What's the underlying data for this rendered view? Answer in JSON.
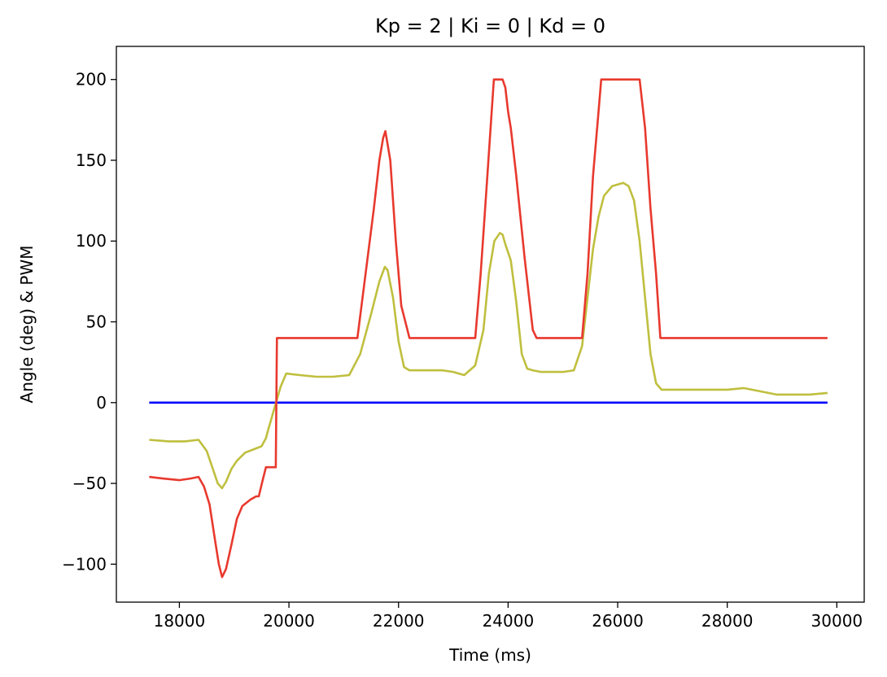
{
  "chart_data": {
    "type": "line",
    "title": "Kp = 2 | Ki = 0 | Kd = 0",
    "xlabel": "Time (ms)",
    "ylabel": "Angle (deg) & PWM",
    "xlim": [
      16850,
      30500
    ],
    "ylim": [
      -123.5,
      220.5
    ],
    "xticks": [
      18000,
      20000,
      22000,
      24000,
      26000,
      28000,
      30000
    ],
    "xtick_labels": [
      "18000",
      "20000",
      "22000",
      "24000",
      "26000",
      "28000",
      "30000"
    ],
    "yticks": [
      -100,
      -50,
      0,
      50,
      100,
      150,
      200
    ],
    "ytick_labels": [
      "−100",
      "−50",
      "0",
      "50",
      "100",
      "150",
      "200"
    ],
    "grid": false,
    "legend": "none",
    "series": [
      {
        "color": "#0000ff",
        "x": [
          17450,
          29830
        ],
        "y": [
          0,
          0
        ]
      },
      {
        "color": "#bfbf3f",
        "x": [
          17450,
          17800,
          18100,
          18350,
          18500,
          18620,
          18700,
          18780,
          18850,
          18950,
          19050,
          19200,
          19350,
          19500,
          19580,
          19620,
          19680,
          19730,
          19780,
          19850,
          19950,
          20200,
          20500,
          20800,
          21100,
          21300,
          21500,
          21650,
          21750,
          21800,
          21900,
          22000,
          22100,
          22200,
          22400,
          22600,
          22800,
          23000,
          23200,
          23400,
          23550,
          23650,
          23750,
          23850,
          23900,
          23950,
          24050,
          24150,
          24250,
          24350,
          24450,
          24600,
          24800,
          25000,
          25200,
          25350,
          25450,
          25550,
          25650,
          25750,
          25900,
          26000,
          26100,
          26200,
          26300,
          26400,
          26500,
          26600,
          26700,
          26800,
          27000,
          27500,
          28000,
          28300,
          28600,
          28900,
          29200,
          29500,
          29830
        ],
        "y": [
          -23,
          -24,
          -24,
          -23,
          -30,
          -42,
          -50,
          -53,
          -49,
          -41,
          -36,
          -31,
          -29,
          -27,
          -22,
          -17,
          -10,
          -4,
          2,
          10,
          18,
          17,
          16,
          16,
          17,
          30,
          55,
          75,
          84,
          82,
          65,
          38,
          22,
          20,
          20,
          20,
          20,
          19,
          17,
          23,
          45,
          80,
          100,
          105,
          104,
          98,
          88,
          62,
          30,
          21,
          20,
          19,
          19,
          19,
          20,
          35,
          65,
          95,
          115,
          128,
          134,
          135,
          136,
          134,
          125,
          100,
          65,
          30,
          12,
          8,
          8,
          8,
          8,
          9,
          7,
          5,
          5,
          5,
          6
        ]
      },
      {
        "color": "#e8392e",
        "x": [
          17450,
          17700,
          18000,
          18200,
          18350,
          18450,
          18550,
          18650,
          18720,
          18780,
          18850,
          18950,
          19050,
          19150,
          19300,
          19400,
          19450,
          19520,
          19580,
          19620,
          19700,
          19760,
          19780,
          21000,
          21250,
          21400,
          21550,
          21650,
          21720,
          21760,
          21850,
          21950,
          22050,
          22200,
          23300,
          23400,
          23500,
          23600,
          23700,
          23740,
          23900,
          23950,
          24000,
          24050,
          24150,
          24300,
          24450,
          24520,
          25250,
          25350,
          25450,
          25550,
          25650,
          25700,
          26400,
          26500,
          26600,
          26700,
          26780,
          29830
        ],
        "y": [
          -46,
          -47,
          -48,
          -47,
          -46,
          -52,
          -63,
          -85,
          -100,
          -108,
          -103,
          -88,
          -72,
          -64,
          -60,
          -58,
          -58,
          -48,
          -40,
          -40,
          -40,
          -40,
          40,
          40,
          40,
          80,
          120,
          150,
          164,
          168,
          150,
          100,
          60,
          40,
          40,
          40,
          80,
          130,
          180,
          200,
          200,
          195,
          180,
          170,
          140,
          90,
          45,
          40,
          40,
          40,
          80,
          140,
          180,
          200,
          200,
          170,
          120,
          80,
          40,
          40
        ]
      }
    ]
  }
}
